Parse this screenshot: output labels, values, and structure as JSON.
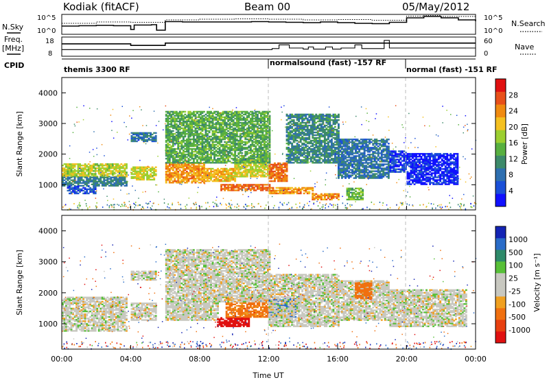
{
  "header": {
    "station": "Kodiak (fitACF)",
    "beam": "Beam 00",
    "date": "05/May/2012"
  },
  "left_labels": {
    "nsky": "N.Sky",
    "freq": "Freq.",
    "freq_unit": "[MHz]",
    "cpid": "CPID"
  },
  "right_labels": {
    "nsearch": "N.Search",
    "nave": "Nave"
  },
  "colors": {
    "power": [
      "#1010ff",
      "#1a50d8",
      "#2e6fb0",
      "#3d8a6a",
      "#58b040",
      "#9ccf30",
      "#f4c020",
      "#f08a10",
      "#e8501a",
      "#e01010"
    ],
    "velocity": [
      "#1424b4",
      "#2a6cc8",
      "#2e8a6a",
      "#58c038",
      "#c8c8c0",
      "#c8c8c0",
      "#f0a020",
      "#f07010",
      "#e84010",
      "#e01010"
    ],
    "background": "#ffffff"
  },
  "chart_data": [
    {
      "id": "noise",
      "type": "line",
      "series": [
        {
          "name": "N.Sky"
        },
        {
          "name": "N.Search"
        }
      ],
      "x_range_hours": [
        0,
        24
      ],
      "y_left_ticks": [
        "10^5",
        "10^0"
      ],
      "y_right_ticks": [
        "10^5",
        "10^0"
      ],
      "nsky_levels": [
        [
          0,
          1.8
        ],
        [
          1,
          1.9
        ],
        [
          2,
          2.0
        ],
        [
          3,
          1.9
        ],
        [
          4,
          0.8
        ],
        [
          4.2,
          2.1
        ],
        [
          5.2,
          2.2
        ],
        [
          5.5,
          0.6
        ],
        [
          6.0,
          3.1
        ],
        [
          7,
          3.0
        ],
        [
          8,
          3.0
        ],
        [
          9,
          3.0
        ],
        [
          10,
          3.0
        ],
        [
          11,
          3.1
        ],
        [
          12,
          3.0
        ],
        [
          13,
          2.9
        ],
        [
          14,
          2.8
        ],
        [
          15,
          3.0
        ],
        [
          16,
          2.8
        ],
        [
          17,
          2.6
        ],
        [
          18,
          2.5
        ],
        [
          19,
          2.9
        ],
        [
          20,
          4.2
        ],
        [
          21,
          4.6
        ],
        [
          22,
          4.2
        ],
        [
          23,
          3.6
        ],
        [
          24,
          3.2
        ]
      ],
      "nsearch_levels": [
        [
          0,
          2.6
        ],
        [
          2,
          3.0
        ],
        [
          4,
          2.9
        ],
        [
          6,
          3.6
        ],
        [
          8,
          3.8
        ],
        [
          10,
          3.9
        ],
        [
          12,
          3.8
        ],
        [
          14,
          3.6
        ],
        [
          16,
          3.7
        ],
        [
          18,
          3.5
        ],
        [
          20,
          4.7
        ],
        [
          21,
          4.9
        ],
        [
          22,
          4.6
        ],
        [
          24,
          3.8
        ]
      ]
    },
    {
      "id": "freq_nave",
      "type": "line",
      "x_range_hours": [
        0,
        24
      ],
      "y_left_ticks": [
        "18",
        "8"
      ],
      "y_right_ticks": [
        "60",
        "0"
      ],
      "freq_MHz": [
        [
          0,
          15
        ],
        [
          4,
          15
        ],
        [
          4,
          14
        ],
        [
          5.5,
          14
        ],
        [
          6,
          15.5
        ],
        [
          24,
          15.5
        ]
      ],
      "nave": [
        [
          0,
          20
        ],
        [
          12,
          20
        ],
        [
          12.2,
          24
        ],
        [
          12.6,
          38
        ],
        [
          13.2,
          26
        ],
        [
          14.0,
          22
        ],
        [
          14.3,
          30
        ],
        [
          14.6,
          22
        ],
        [
          15.3,
          30
        ],
        [
          15.7,
          22
        ],
        [
          16.2,
          26
        ],
        [
          17.0,
          38
        ],
        [
          17.4,
          24
        ],
        [
          18.7,
          55
        ],
        [
          19.0,
          26
        ],
        [
          24,
          26
        ]
      ]
    },
    {
      "id": "cpid",
      "type": "table",
      "segments": [
        {
          "start_h": 0,
          "end_h": 12,
          "label": "themis 3300 RF"
        },
        {
          "start_h": 12,
          "end_h": 20,
          "label": "normalsound (fast) -157 RF"
        },
        {
          "start_h": 20,
          "end_h": 24,
          "label": "normal (fast) -151 RF"
        }
      ]
    },
    {
      "id": "power",
      "type": "heatmap",
      "ylabel": "Slant Range [km]",
      "colorbar_label": "Power [dB]",
      "colorbar_ticks": [
        "4",
        "8",
        "12",
        "16",
        "20",
        "24",
        "28"
      ],
      "x_range_hours": [
        0,
        24
      ],
      "y_range_km": [
        180,
        4500
      ],
      "y_ticks_km": [
        1000,
        2000,
        3000,
        4000
      ],
      "gaps_hours": [
        [
          3.85,
          4.0
        ],
        [
          5.45,
          6.0
        ],
        [
          23.3,
          23.5
        ]
      ],
      "bands": [
        {
          "t": [
            0.0,
            3.8
          ],
          "r": [
            1250,
            1700
          ],
          "p": 19
        },
        {
          "t": [
            0.0,
            3.8
          ],
          "r": [
            950,
            1250
          ],
          "p": 11
        },
        {
          "t": [
            0.3,
            2.0
          ],
          "r": [
            700,
            950
          ],
          "p": 7
        },
        {
          "t": [
            4.0,
            5.45
          ],
          "r": [
            1150,
            1600
          ],
          "p": 20
        },
        {
          "t": [
            4.0,
            5.45
          ],
          "r": [
            2400,
            2700
          ],
          "p": 10
        },
        {
          "t": [
            6.0,
            8.2
          ],
          "r": [
            1050,
            1700
          ],
          "p": 24
        },
        {
          "t": [
            8.2,
            10.0
          ],
          "r": [
            1100,
            1550
          ],
          "p": 22
        },
        {
          "t": [
            10.0,
            12.0
          ],
          "r": [
            1250,
            1800
          ],
          "p": 20
        },
        {
          "t": [
            9.2,
            12.0
          ],
          "r": [
            800,
            1000
          ],
          "p": 26
        },
        {
          "t": [
            6.0,
            12.0
          ],
          "r": [
            1700,
            3400
          ],
          "p": 15
        },
        {
          "t": [
            12.0,
            14.5
          ],
          "r": [
            700,
            900
          ],
          "p": 24
        },
        {
          "t": [
            12.0,
            13.0
          ],
          "r": [
            1100,
            1700
          ],
          "p": 26
        },
        {
          "t": [
            14.5,
            16.0
          ],
          "r": [
            500,
            700
          ],
          "p": 24
        },
        {
          "t": [
            13.0,
            16.0
          ],
          "r": [
            1700,
            3300
          ],
          "p": 12
        },
        {
          "t": [
            16.0,
            19.0
          ],
          "r": [
            1200,
            2500
          ],
          "p": 10
        },
        {
          "t": [
            16.5,
            17.5
          ],
          "r": [
            500,
            900
          ],
          "p": 16
        },
        {
          "t": [
            19.0,
            20.0
          ],
          "r": [
            1400,
            2100
          ],
          "p": 6
        },
        {
          "t": [
            20.0,
            23.0
          ],
          "r": [
            1000,
            2000
          ],
          "p": 4
        }
      ]
    },
    {
      "id": "velocity",
      "type": "heatmap",
      "ylabel": "Slant Range [km]",
      "xlabel": "Time UT",
      "x_ticks": [
        "00:00",
        "04:00",
        "08:00",
        "12:00",
        "16:00",
        "20:00",
        "00:00"
      ],
      "colorbar_label": "Velocity [m s⁻¹]",
      "colorbar_ticks": [
        "-1000",
        "-500",
        "-100",
        "-25",
        "25",
        "100",
        "500",
        "1000"
      ],
      "x_range_hours": [
        0,
        24
      ],
      "y_range_km": [
        180,
        4500
      ],
      "y_ticks_km": [
        1000,
        2000,
        3000,
        4000
      ],
      "bands": [
        {
          "t": [
            0.0,
            3.8
          ],
          "r": [
            750,
            1850
          ],
          "v": 0
        },
        {
          "t": [
            4.0,
            5.45
          ],
          "r": [
            1100,
            1650
          ],
          "v": 0
        },
        {
          "t": [
            4.0,
            5.45
          ],
          "r": [
            2400,
            2700
          ],
          "v": 0
        },
        {
          "t": [
            6.0,
            9.0
          ],
          "r": [
            1100,
            1700
          ],
          "v": 0
        },
        {
          "t": [
            9.0,
            10.8
          ],
          "r": [
            900,
            1200
          ],
          "v": -600
        },
        {
          "t": [
            9.5,
            12.0
          ],
          "r": [
            1200,
            1800
          ],
          "v": -150
        },
        {
          "t": [
            6.0,
            12.0
          ],
          "r": [
            1700,
            3400
          ],
          "v": 0
        },
        {
          "t": [
            12.0,
            13.5
          ],
          "r": [
            1200,
            1800
          ],
          "v": 300
        },
        {
          "t": [
            12.0,
            16.0
          ],
          "r": [
            900,
            2600
          ],
          "v": 0
        },
        {
          "t": [
            16.0,
            19.0
          ],
          "r": [
            1100,
            2400
          ],
          "v": 0
        },
        {
          "t": [
            17.0,
            18.0
          ],
          "r": [
            1800,
            2300
          ],
          "v": -200
        },
        {
          "t": [
            19.0,
            23.5
          ],
          "r": [
            900,
            2100
          ],
          "v": 0
        }
      ]
    }
  ]
}
